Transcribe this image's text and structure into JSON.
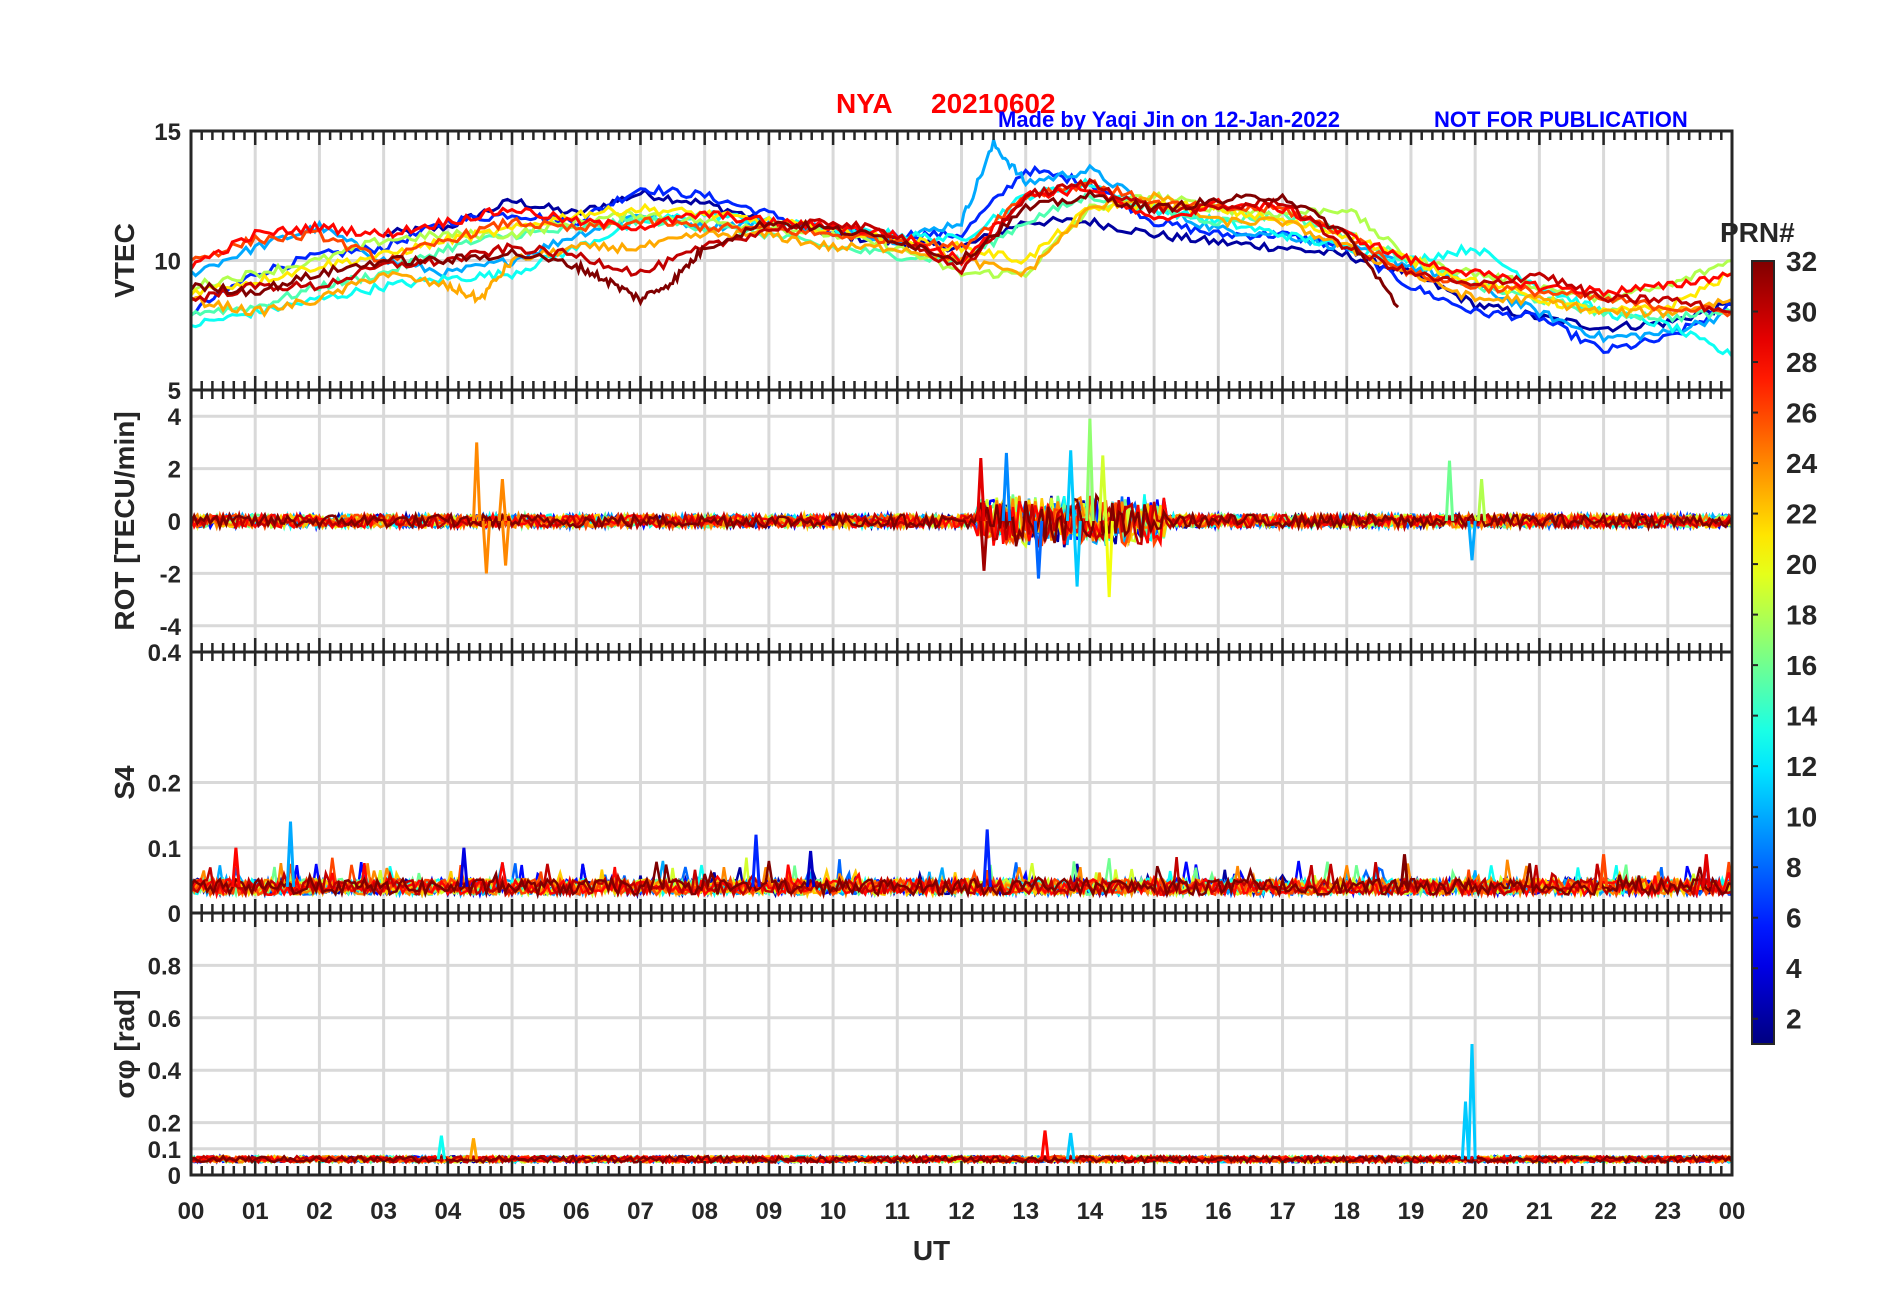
{
  "header": {
    "station": "NYA",
    "date": "20210602",
    "made_by": "Made by Yaqi Jin on 12-Jan-2022",
    "not_for_publication": "NOT FOR PUBLICATION"
  },
  "colors": {
    "station_title": "#ff0000",
    "notice_text": "#0000ff",
    "grid": "#d9d9d9",
    "axes": "#262626",
    "colormap": "jet"
  },
  "chart_data": [
    {
      "type": "line",
      "panel": "vtec",
      "ylabel": "VTEC",
      "ylim": [
        5,
        15
      ],
      "yticks": [
        10,
        15
      ],
      "ytick_labels": [
        "10",
        "15"
      ],
      "xlim": [
        0,
        24
      ],
      "grid": true,
      "series": [
        {
          "prn": 2,
          "x": [
            3.0,
            4.0,
            5.0,
            6.0,
            7.0,
            8.0,
            9.0,
            10.0,
            11.0,
            12.0,
            13.0,
            14.0,
            15.0,
            16.0,
            17.0,
            18.0,
            19.0,
            20.0,
            21.0,
            22.0,
            23.0,
            24.0
          ],
          "y": [
            11.0,
            11.3,
            12.3,
            11.8,
            12.6,
            12.2,
            11.5,
            11.0,
            10.7,
            10.5,
            11.5,
            11.5,
            11.0,
            10.7,
            10.5,
            10.2,
            9.5,
            8.3,
            7.8,
            7.4,
            7.6,
            8.3
          ]
        },
        {
          "prn": 6,
          "x": [
            0.0,
            1.0,
            2.0,
            3.0,
            4.0,
            5.0,
            6.0,
            7.0,
            8.0,
            9.0,
            10.0,
            11.0,
            12.0,
            13.0,
            14.0,
            15.0,
            16.0,
            17.0,
            18.0,
            19.0,
            20.0,
            21.0,
            22.0,
            23.0,
            24.0
          ],
          "y": [
            8.0,
            9.5,
            10.2,
            10.5,
            11.5,
            11.8,
            11.5,
            12.8,
            12.5,
            11.8,
            11.0,
            11.0,
            11.0,
            13.5,
            13.0,
            11.5,
            11.0,
            11.0,
            10.5,
            9.0,
            8.0,
            7.8,
            6.5,
            7.0,
            8.3
          ]
        },
        {
          "prn": 10,
          "x": [
            0.0,
            1.0,
            2.0,
            3.0,
            4.0,
            5.0,
            6.0,
            7.0,
            8.0,
            9.0,
            10.0,
            11.0,
            12.0,
            12.5,
            13.0,
            14.0,
            15.0,
            16.0,
            17.0,
            18.0,
            19.0,
            20.0,
            21.0,
            22.0,
            23.0,
            24.0
          ],
          "y": [
            9.5,
            10.5,
            11.3,
            10.0,
            9.5,
            10.0,
            11.0,
            11.8,
            11.3,
            11.5,
            11.2,
            10.8,
            11.5,
            14.5,
            13.0,
            13.5,
            12.0,
            11.2,
            11.0,
            10.5,
            9.8,
            9.0,
            8.0,
            7.0,
            7.2,
            8.0
          ]
        },
        {
          "prn": 13,
          "x": [
            0.0,
            1.0,
            2.0,
            3.0,
            4.0,
            5.0,
            6.0,
            7.0,
            8.0,
            9.0,
            10.0,
            11.0,
            12.0,
            13.0,
            14.0,
            15.0,
            16.0,
            17.0,
            18.0,
            19.0,
            20.0,
            21.0,
            22.0,
            23.0,
            24.0
          ],
          "y": [
            7.5,
            8.0,
            8.5,
            9.0,
            9.3,
            9.5,
            10.5,
            11.5,
            11.8,
            11.5,
            11.2,
            11.0,
            10.8,
            12.5,
            13.0,
            12.0,
            11.5,
            11.0,
            10.5,
            10.0,
            10.5,
            9.0,
            8.0,
            7.5,
            6.3
          ]
        },
        {
          "prn": 15,
          "x": [
            0.0,
            1.0,
            2.0,
            3.0,
            4.0,
            5.0,
            6.0,
            7.0,
            8.0,
            9.0,
            10.0,
            11.0,
            12.0,
            13.0,
            14.0,
            15.0,
            16.0,
            17.0,
            18.0,
            19.0,
            20.0,
            21.0,
            22.0,
            23.0,
            24.0
          ],
          "y": [
            8.0,
            8.2,
            9.0,
            9.5,
            10.5,
            11.0,
            11.2,
            11.6,
            11.3,
            11.0,
            10.5,
            10.2,
            10.0,
            11.5,
            12.5,
            12.0,
            11.5,
            11.8,
            11.0,
            10.0,
            9.0,
            8.5,
            8.0,
            7.8,
            8.0
          ]
        },
        {
          "prn": 18,
          "x": [
            0.0,
            1.0,
            2.0,
            3.0,
            4.0,
            5.0,
            6.0,
            7.0,
            8.0,
            9.0,
            10.0,
            11.0,
            12.0,
            13.0,
            14.0,
            15.0,
            16.0,
            17.0,
            18.0,
            19.0,
            20.0,
            21.0,
            22.0,
            23.0,
            24.0
          ],
          "y": [
            9.0,
            9.5,
            10.0,
            10.8,
            11.0,
            11.0,
            11.5,
            11.8,
            11.5,
            11.3,
            11.0,
            10.5,
            9.5,
            9.5,
            12.0,
            12.5,
            12.0,
            11.8,
            12.0,
            10.0,
            9.5,
            9.0,
            8.5,
            9.0,
            10.0
          ]
        },
        {
          "prn": 21,
          "x": [
            0.0,
            1.0,
            2.0,
            3.0,
            4.0,
            5.0,
            6.0,
            7.0,
            8.0,
            9.0,
            10.0,
            11.0,
            12.0,
            13.0,
            14.0,
            15.0,
            16.0,
            17.0,
            18.0,
            19.0,
            20.0,
            21.0,
            22.0,
            23.0,
            24.0
          ],
          "y": [
            8.8,
            9.2,
            9.8,
            10.2,
            10.8,
            11.2,
            11.8,
            12.0,
            11.8,
            11.5,
            11.2,
            10.8,
            10.5,
            10.0,
            12.0,
            12.2,
            12.0,
            11.5,
            11.0,
            10.0,
            9.2,
            8.5,
            8.0,
            8.2,
            9.5
          ]
        },
        {
          "prn": 23,
          "x": [
            0.0,
            1.0,
            2.0,
            3.0,
            4.0,
            4.5,
            5.0,
            6.0,
            7.0,
            8.0,
            9.0,
            10.0,
            11.0,
            12.0,
            13.0,
            14.0,
            15.0,
            16.0,
            17.0,
            18.0,
            19.0,
            20.0,
            21.0,
            22.0,
            23.0,
            24.0
          ],
          "y": [
            8.5,
            8.0,
            8.5,
            9.5,
            9.0,
            8.5,
            10.0,
            10.5,
            10.5,
            11.0,
            11.0,
            10.5,
            10.5,
            10.0,
            9.5,
            12.0,
            12.5,
            11.5,
            11.5,
            10.5,
            9.5,
            8.5,
            8.5,
            8.0,
            8.0,
            8.5
          ]
        },
        {
          "prn": 26,
          "x": [
            0.0,
            1.0,
            2.0,
            3.0,
            4.0,
            5.0,
            6.0,
            7.0,
            8.0,
            9.0,
            10.0,
            11.0,
            12.0,
            13.0,
            14.0,
            15.0,
            16.0,
            17.0,
            18.0,
            19.0,
            20.0,
            21.0,
            22.0,
            23.0,
            24.0
          ],
          "y": [
            10.0,
            10.8,
            11.0,
            10.0,
            10.8,
            11.5,
            11.2,
            11.5,
            11.3,
            11.2,
            11.0,
            10.8,
            10.5,
            12.5,
            13.0,
            12.2,
            12.0,
            12.0,
            11.0,
            9.5,
            9.0,
            8.8,
            8.5,
            8.2,
            8.0
          ]
        },
        {
          "prn": 28,
          "x": [
            0.0,
            1.0,
            2.0,
            3.0,
            4.0,
            5.0,
            6.0,
            7.0,
            8.0,
            9.0,
            10.0,
            11.0,
            12.0,
            13.0,
            14.0,
            15.0,
            16.0,
            17.0,
            18.0,
            19.0,
            20.0,
            21.0,
            22.0,
            23.0,
            24.0
          ],
          "y": [
            9.8,
            11.0,
            11.3,
            11.0,
            11.5,
            12.0,
            11.5,
            11.3,
            11.8,
            11.5,
            11.3,
            11.0,
            10.0,
            12.5,
            12.8,
            11.5,
            12.2,
            12.0,
            11.0,
            10.0,
            9.5,
            9.0,
            8.8,
            9.0,
            9.5
          ]
        },
        {
          "prn": 30,
          "x": [
            0.0,
            1.0,
            2.0,
            3.0,
            4.0,
            5.0,
            6.0,
            7.0,
            8.0,
            9.0,
            10.0,
            11.0,
            12.0,
            13.0,
            14.0,
            15.0,
            16.0,
            17.0,
            18.0,
            19.0,
            20.0,
            21.0,
            22.0,
            23.0,
            24.0
          ],
          "y": [
            8.5,
            9.0,
            9.0,
            9.8,
            10.0,
            10.5,
            10.2,
            9.5,
            10.5,
            11.2,
            11.5,
            11.0,
            9.5,
            12.5,
            13.0,
            12.0,
            12.0,
            12.3,
            10.5,
            9.5,
            9.0,
            9.5,
            8.5,
            8.5,
            8.0
          ]
        },
        {
          "prn": 32,
          "x": [
            0.0,
            1.0,
            2.0,
            3.0,
            4.0,
            5.0,
            6.0,
            6.5,
            7.0,
            7.5,
            8.0,
            9.0,
            10.0,
            11.0,
            12.0,
            13.0,
            14.0,
            15.0,
            16.0,
            17.0,
            18.0,
            18.8
          ],
          "y": [
            9.0,
            8.8,
            9.5,
            10.0,
            10.0,
            10.3,
            9.8,
            9.2,
            8.5,
            9.2,
            10.5,
            11.5,
            11.2,
            10.8,
            10.0,
            12.0,
            12.5,
            12.0,
            12.3,
            12.5,
            11.0,
            8.2
          ]
        }
      ]
    },
    {
      "type": "line",
      "panel": "rot",
      "ylabel": "ROT [TECU/min]",
      "ylim": [
        -5,
        5
      ],
      "yticks": [
        -4,
        -2,
        0,
        2,
        4,
        5
      ],
      "ytick_labels": [
        "-4",
        "-2",
        "0",
        "2",
        "4",
        "5"
      ],
      "xlim": [
        0,
        24
      ],
      "grid": true,
      "background_amplitude": 0.25,
      "spikes": [
        {
          "x": 4.45,
          "value": 3.0,
          "prn": 24
        },
        {
          "x": 4.6,
          "value": -2.0,
          "prn": 24
        },
        {
          "x": 4.85,
          "value": 1.6,
          "prn": 24
        },
        {
          "x": 4.9,
          "value": -1.7,
          "prn": 24
        },
        {
          "x": 12.3,
          "value": 2.4,
          "prn": 29
        },
        {
          "x": 12.35,
          "value": -1.9,
          "prn": 31
        },
        {
          "x": 12.7,
          "value": 2.6,
          "prn": 9
        },
        {
          "x": 13.2,
          "value": -2.2,
          "prn": 8
        },
        {
          "x": 13.7,
          "value": 2.7,
          "prn": 11
        },
        {
          "x": 13.8,
          "value": -2.5,
          "prn": 11
        },
        {
          "x": 14.0,
          "value": 3.9,
          "prn": 17
        },
        {
          "x": 14.3,
          "value": -2.9,
          "prn": 20
        },
        {
          "x": 14.2,
          "value": 2.5,
          "prn": 19
        },
        {
          "x": 19.6,
          "value": 2.3,
          "prn": 16
        },
        {
          "x": 19.95,
          "value": -1.5,
          "prn": 10
        },
        {
          "x": 20.1,
          "value": 1.6,
          "prn": 18
        }
      ]
    },
    {
      "type": "line",
      "panel": "s4",
      "ylabel": "S4",
      "ylim": [
        0,
        0.4
      ],
      "yticks": [
        0,
        0.1,
        0.2,
        0.4
      ],
      "ytick_labels": [
        "0",
        "0.1",
        "0.2",
        "0.4"
      ],
      "xlim": [
        0,
        24
      ],
      "grid": true,
      "baseline": 0.04,
      "spikes": [
        {
          "x": 0.7,
          "value": 0.1,
          "prn": 28
        },
        {
          "x": 1.55,
          "value": 0.14,
          "prn": 10
        },
        {
          "x": 4.25,
          "value": 0.1,
          "prn": 4
        },
        {
          "x": 8.8,
          "value": 0.12,
          "prn": 6
        },
        {
          "x": 9.65,
          "value": 0.095,
          "prn": 3
        },
        {
          "x": 12.4,
          "value": 0.128,
          "prn": 6
        },
        {
          "x": 18.9,
          "value": 0.09,
          "prn": 32
        },
        {
          "x": 22.0,
          "value": 0.09,
          "prn": 26
        },
        {
          "x": 23.6,
          "value": 0.09,
          "prn": 29
        }
      ]
    },
    {
      "type": "line",
      "panel": "sigma_phi",
      "ylabel": "σφ [rad]",
      "ylim": [
        0,
        1
      ],
      "yticks": [
        0,
        0.1,
        0.2,
        0.4,
        0.6,
        0.8
      ],
      "ytick_labels": [
        "0",
        "0.1",
        "0.2",
        "0.4",
        "0.6",
        "0.8"
      ],
      "xlim": [
        0,
        24
      ],
      "grid": true,
      "baseline": 0.06,
      "spikes": [
        {
          "x": 3.9,
          "value": 0.15,
          "prn": 13
        },
        {
          "x": 4.4,
          "value": 0.14,
          "prn": 23
        },
        {
          "x": 13.3,
          "value": 0.17,
          "prn": 28
        },
        {
          "x": 13.7,
          "value": 0.16,
          "prn": 11
        },
        {
          "x": 19.85,
          "value": 0.28,
          "prn": 11
        },
        {
          "x": 19.95,
          "value": 0.5,
          "prn": 11
        }
      ]
    }
  ],
  "x_axis": {
    "label": "UT",
    "tick_labels": [
      "00",
      "01",
      "02",
      "03",
      "04",
      "05",
      "06",
      "07",
      "08",
      "09",
      "10",
      "11",
      "12",
      "13",
      "14",
      "15",
      "16",
      "17",
      "18",
      "19",
      "20",
      "21",
      "22",
      "23",
      "00"
    ]
  },
  "colorbar": {
    "title": "PRN#",
    "range": [
      1,
      32
    ],
    "ticks": [
      2,
      4,
      6,
      8,
      10,
      12,
      14,
      16,
      18,
      20,
      22,
      24,
      26,
      28,
      30,
      32
    ],
    "tick_labels": [
      "2",
      "4",
      "6",
      "8",
      "10",
      "12",
      "14",
      "16",
      "18",
      "20",
      "22",
      "24",
      "26",
      "28",
      "30",
      "32"
    ]
  }
}
